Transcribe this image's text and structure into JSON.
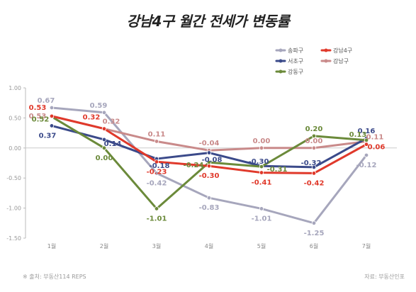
{
  "chart_data": {
    "type": "line",
    "title": "강남4구 월간 전세가 변동률",
    "categories": [
      "1월",
      "2월",
      "3월",
      "4월",
      "5월",
      "6월",
      "7월"
    ],
    "ylim": [
      -1.5,
      1.0
    ],
    "yticks": [
      "1.00",
      "0.50",
      "0.00",
      "-0.50",
      "-1.00",
      "-1.50"
    ],
    "ytick_values": [
      1.0,
      0.5,
      0.0,
      -0.5,
      -1.0,
      -1.5
    ],
    "grid": false,
    "legend_position": "top-right",
    "series": [
      {
        "name": "송파구",
        "color": "#a6a6bc",
        "values": [
          0.67,
          0.59,
          -0.42,
          -0.83,
          -1.01,
          -1.25,
          -0.12
        ],
        "labels": [
          "0.67",
          "0.59",
          "-0.42",
          "-0.83",
          "-1.01",
          "-1.25",
          "-0.12"
        ]
      },
      {
        "name": "서초구",
        "color": "#3b4a8a",
        "values": [
          0.37,
          0.14,
          -0.18,
          -0.08,
          -0.3,
          -0.32,
          0.16
        ],
        "labels": [
          "0.37",
          "0.14",
          "-0.18",
          "-0.08",
          "-0.30",
          "-0.32",
          "0.16"
        ]
      },
      {
        "name": "강동구",
        "color": "#6b8a3a",
        "values": [
          0.52,
          0.0,
          -1.01,
          -0.24,
          -0.31,
          0.2,
          0.13
        ],
        "labels": [
          "0.52",
          "0.00",
          "-1.01",
          "-0.24",
          "-0.31",
          "0.20",
          "0.13"
        ]
      },
      {
        "name": "강남구",
        "color": "#c98a8a",
        "values": [
          0.53,
          0.32,
          0.11,
          -0.04,
          0.0,
          0.0,
          0.11
        ],
        "labels": [
          "0.53",
          "0.32",
          "0.11",
          "-0.04",
          "0.00",
          "0.00",
          "0.11"
        ]
      },
      {
        "name": "강남4구",
        "color": "#e0392b",
        "values": [
          0.53,
          0.32,
          -0.23,
          -0.3,
          -0.41,
          -0.42,
          0.06
        ],
        "labels": [
          "0.53",
          "0.32",
          "-0.23",
          "-0.30",
          "-0.41",
          "-0.42",
          "0.06"
        ]
      }
    ]
  },
  "source_left": "※ 출처: 부동산114 REPS",
  "source_right": "자료: 부동산인포"
}
